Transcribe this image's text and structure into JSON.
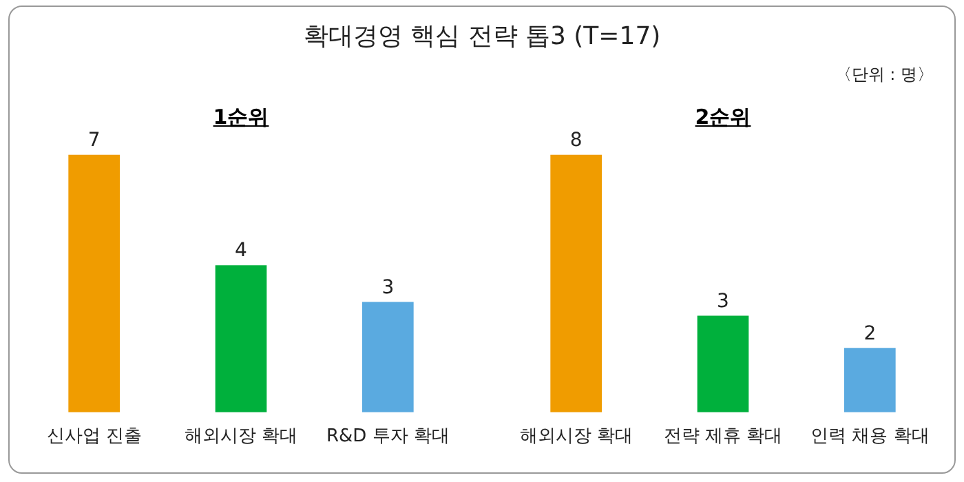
{
  "chart_data": [
    {
      "type": "other",
      "title": "확대경영 핵심 전략 톱3 (T=17)",
      "annotations": [
        "〈단위 : 명〉"
      ]
    },
    {
      "type": "bar",
      "title": "1순위",
      "categories": [
        "신사업 진출",
        "해외시장 확대",
        "R&D 투자 확대"
      ],
      "values": [
        7,
        4,
        3
      ],
      "colors": [
        "#f09c00",
        "#00b03c",
        "#5aaae0"
      ],
      "data_labels": true,
      "grid": false,
      "legend": false,
      "tick_labels": "x"
    },
    {
      "type": "bar",
      "title": "2순위",
      "categories": [
        "해외시장 확대",
        "전략 제휴 확대",
        "인력 채용 확대"
      ],
      "values": [
        8,
        3,
        2
      ],
      "colors": [
        "#f09c00",
        "#00b03c",
        "#5aaae0"
      ],
      "data_labels": true,
      "grid": false,
      "legend": false,
      "tick_labels": "x"
    }
  ]
}
